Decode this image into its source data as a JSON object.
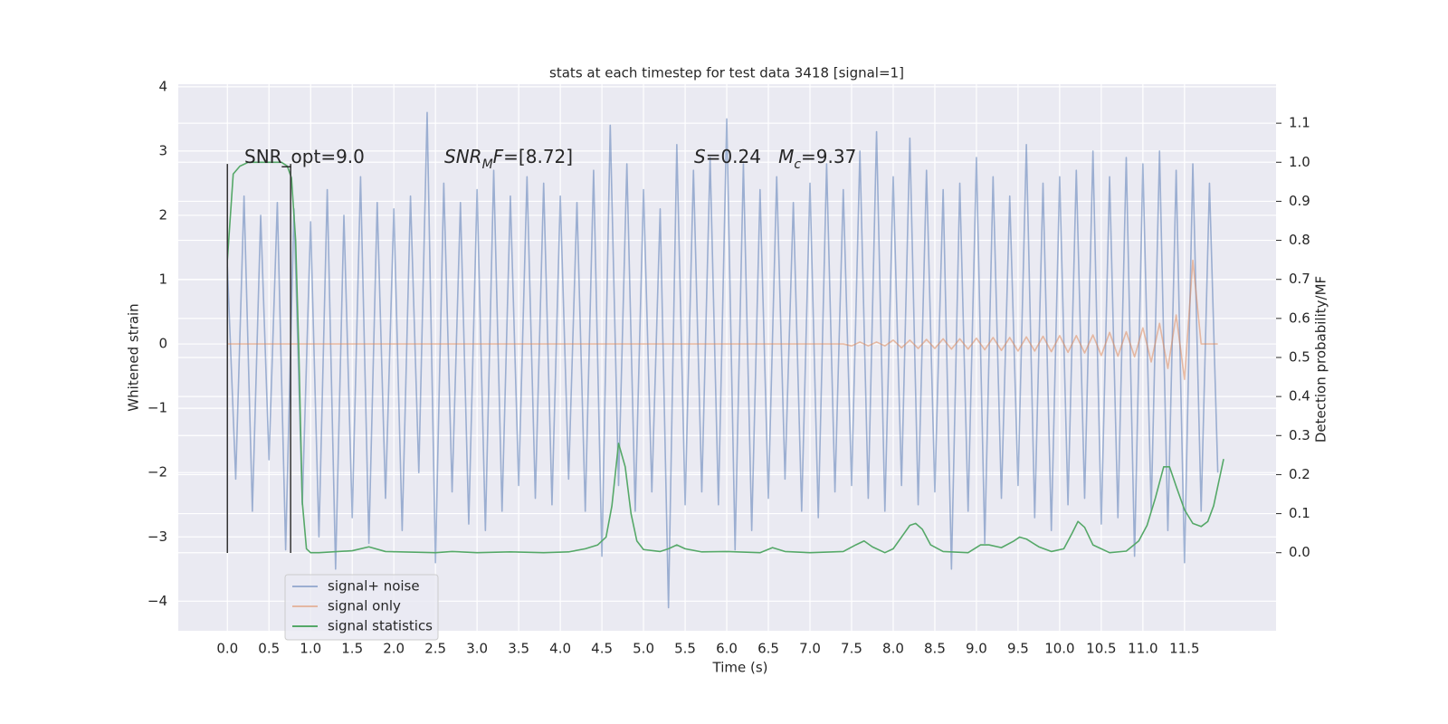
{
  "chart_data": {
    "type": "line",
    "title": "stats at each timestep for test data 3418 [signal=1]",
    "xlabel": "Time (s)",
    "ylabel": "Whitened strain",
    "y2label": "Detection probability/MF",
    "xlim": [
      -0.59,
      12.6
    ],
    "ylim": [
      -4.46,
      4.04
    ],
    "y2lim": [
      -0.2,
      1.2
    ],
    "xticks": [
      {
        "value": 0,
        "label": "0.0"
      },
      0.5,
      {
        "value": 1,
        "label": "1.0"
      },
      1.5,
      {
        "value": 2,
        "label": "2.0"
      },
      2.5,
      {
        "value": 3,
        "label": "3.0"
      },
      3.5,
      {
        "value": 4,
        "label": "4.0"
      },
      4.5,
      {
        "value": 5,
        "label": "5.0"
      },
      5.5,
      {
        "value": 6,
        "label": "6.0"
      },
      6.5,
      {
        "value": 7,
        "label": "7.0"
      },
      7.5,
      {
        "value": 8,
        "label": "8.0"
      },
      8.5,
      {
        "value": 9,
        "label": "9.0"
      },
      9.5,
      {
        "value": 10,
        "label": "10.0"
      },
      10.5,
      {
        "value": 11,
        "label": "11.0"
      },
      11.5
    ],
    "yticks": [
      {
        "value": -4,
        "label": "−4"
      },
      {
        "value": -3,
        "label": "−3"
      },
      {
        "value": -2,
        "label": "−2"
      },
      {
        "value": -1,
        "label": "−1"
      },
      0,
      1,
      2,
      3,
      4
    ],
    "y2ticks": [
      {
        "value": 0,
        "label": "0.0"
      },
      0.1,
      0.2,
      0.3,
      0.4,
      0.5,
      0.6,
      0.7,
      0.8,
      0.9,
      {
        "value": 1,
        "label": "1.0"
      },
      1.1
    ],
    "grid": true,
    "legend": "lower left",
    "x": [
      0,
      0.1,
      0.2,
      0.3,
      0.4,
      0.5,
      0.6,
      0.7,
      0.8,
      0.9,
      1,
      1.1,
      1.2,
      1.3,
      1.4,
      1.5,
      1.6,
      1.7,
      1.8,
      1.9,
      2,
      2.1,
      2.2,
      2.3,
      2.4,
      2.5,
      2.6,
      2.7,
      2.8,
      2.9,
      3,
      3.1,
      3.2,
      3.3,
      3.4,
      3.5,
      3.6,
      3.7,
      3.8,
      3.9,
      4,
      4.1,
      4.2,
      4.3,
      4.4,
      4.5,
      4.6,
      4.7,
      4.8,
      4.9,
      5,
      5.1,
      5.2,
      5.3,
      5.4,
      5.5,
      5.6,
      5.7,
      5.8,
      5.9,
      6,
      6.1,
      6.2,
      6.3,
      6.4,
      6.5,
      6.6,
      6.7,
      6.8,
      6.9,
      7,
      7.1,
      7.2,
      7.3,
      7.4,
      7.5,
      7.6,
      7.7,
      7.8,
      7.9,
      8,
      8.1,
      8.2,
      8.3,
      8.4,
      8.5,
      8.6,
      8.7,
      8.8,
      8.9,
      9,
      9.1,
      9.2,
      9.3,
      9.4,
      9.5,
      9.6,
      9.7,
      9.8,
      9.9,
      10,
      10.1,
      10.2,
      10.3,
      10.4,
      10.5,
      10.6,
      10.7,
      10.8,
      10.9,
      11,
      11.1,
      11.2,
      11.3,
      11.4,
      11.5,
      11.6,
      11.7,
      11.8,
      11.9
    ],
    "series": [
      {
        "name": "signal+ noise",
        "color": "#4c72b0",
        "opacity": 0.5,
        "values": [
          1.2,
          -2.1,
          2.3,
          -2.6,
          2.0,
          -1.8,
          2.2,
          -3.2,
          2.1,
          -2.5,
          1.9,
          -3.0,
          2.4,
          -3.5,
          2.0,
          -2.7,
          2.6,
          -3.1,
          2.2,
          -2.4,
          2.1,
          -2.9,
          2.3,
          -2.0,
          3.6,
          -3.4,
          2.5,
          -2.3,
          2.2,
          -2.8,
          2.4,
          -2.9,
          2.7,
          -2.6,
          2.3,
          -2.2,
          2.6,
          -2.4,
          2.5,
          -2.5,
          2.3,
          -2.1,
          2.2,
          -2.6,
          2.7,
          -3.3,
          3.4,
          -2.2,
          2.8,
          -2.6,
          2.4,
          -2.3,
          2.1,
          -4.1,
          3.1,
          -2.5,
          2.7,
          -2.3,
          2.9,
          -2.5,
          3.5,
          -3.2,
          2.8,
          -2.9,
          2.4,
          -2.4,
          2.6,
          -2.1,
          2.2,
          -2.6,
          2.5,
          -2.7,
          2.8,
          -2.3,
          2.4,
          -2.2,
          3.0,
          -2.4,
          3.3,
          -2.6,
          2.6,
          -2.2,
          3.2,
          -2.5,
          2.7,
          -2.3,
          2.4,
          -3.5,
          2.5,
          -2.6,
          2.9,
          -3.1,
          2.6,
          -2.4,
          2.3,
          -2.2,
          3.1,
          -2.7,
          2.5,
          -2.9,
          2.6,
          -2.5,
          2.7,
          -2.4,
          3.0,
          -2.8,
          2.6,
          -2.7,
          2.9,
          -3.3,
          2.8,
          -2.6,
          3.0,
          -2.9,
          2.7,
          -3.4,
          2.8,
          -2.6,
          2.5,
          -2.0
        ]
      },
      {
        "name": "signal only",
        "color": "#dd8452",
        "opacity": 0.5,
        "values": [
          0,
          0,
          0,
          0,
          0,
          0,
          0,
          0,
          0,
          0,
          0,
          0,
          0,
          0,
          0,
          0,
          0,
          0,
          0,
          0,
          0,
          0,
          0,
          0,
          0,
          0,
          0,
          0,
          0,
          0,
          0,
          0,
          0,
          0,
          0,
          0,
          0,
          0,
          0,
          0,
          0,
          0,
          0,
          0,
          0,
          0,
          0,
          0,
          0,
          0,
          0,
          0,
          0,
          0,
          0,
          0,
          0,
          0,
          0,
          0,
          0,
          0,
          0,
          0,
          0,
          0,
          0,
          0,
          0,
          0,
          0,
          0,
          0,
          0,
          0,
          -0.03,
          0.03,
          -0.03,
          0.03,
          -0.03,
          0.06,
          -0.06,
          0.06,
          -0.07,
          0.07,
          -0.07,
          0.08,
          -0.08,
          0.08,
          -0.08,
          0.09,
          -0.09,
          0.1,
          -0.1,
          0.1,
          -0.11,
          0.11,
          -0.11,
          0.12,
          -0.12,
          0.13,
          -0.13,
          0.13,
          -0.14,
          0.14,
          -0.18,
          0.18,
          -0.19,
          0.19,
          -0.2,
          0.25,
          -0.28,
          0.32,
          -0.38,
          0.45,
          -0.55,
          1.3,
          0,
          0,
          0
        ]
      },
      {
        "name": "signal statistics",
        "color": "#55a868",
        "axis": "y2",
        "x": [
          0,
          0.07,
          0.15,
          0.25,
          0.35,
          0.45,
          0.55,
          0.65,
          0.72,
          0.77,
          0.82,
          0.86,
          0.9,
          0.95,
          1.0,
          1.1,
          1.5,
          1.7,
          1.9,
          2.5,
          2.7,
          3.0,
          3.4,
          3.8,
          4.1,
          4.3,
          4.45,
          4.55,
          4.62,
          4.7,
          4.78,
          4.85,
          4.92,
          5.0,
          5.2,
          5.3,
          5.4,
          5.5,
          5.7,
          6.0,
          6.4,
          6.55,
          6.7,
          7.0,
          7.4,
          7.55,
          7.65,
          7.75,
          7.9,
          8.0,
          8.1,
          8.2,
          8.27,
          8.35,
          8.45,
          8.6,
          8.9,
          9.05,
          9.15,
          9.3,
          9.45,
          9.52,
          9.6,
          9.75,
          9.9,
          10.05,
          10.15,
          10.22,
          10.3,
          10.4,
          10.6,
          10.8,
          10.95,
          11.05,
          11.15,
          11.25,
          11.32,
          11.4,
          11.5,
          11.6,
          11.7,
          11.78,
          11.85,
          11.92,
          11.97
        ],
        "values": [
          0.75,
          0.97,
          0.99,
          1.0,
          1.0,
          1.0,
          1.0,
          1.0,
          0.99,
          0.96,
          0.8,
          0.5,
          0.13,
          0.01,
          0.0,
          0.0,
          0.005,
          0.015,
          0.003,
          0.0,
          0.003,
          0.0,
          0.002,
          0.0,
          0.002,
          0.01,
          0.02,
          0.04,
          0.12,
          0.28,
          0.22,
          0.1,
          0.03,
          0.008,
          0.003,
          0.01,
          0.02,
          0.01,
          0.002,
          0.003,
          0.0,
          0.013,
          0.003,
          0.0,
          0.003,
          0.02,
          0.03,
          0.015,
          0.0,
          0.01,
          0.04,
          0.07,
          0.075,
          0.06,
          0.02,
          0.003,
          0.0,
          0.02,
          0.02,
          0.013,
          0.03,
          0.04,
          0.035,
          0.015,
          0.003,
          0.01,
          0.05,
          0.08,
          0.065,
          0.02,
          0.0,
          0.004,
          0.03,
          0.07,
          0.14,
          0.22,
          0.22,
          0.17,
          0.11,
          0.075,
          0.067,
          0.08,
          0.12,
          0.19,
          0.24
        ]
      }
    ],
    "vlines": {
      "x": [
        0,
        0.76
      ],
      "ymin": -3.25,
      "ymax": 2.8,
      "color": "#333333"
    },
    "annotations": [
      [
        {
          "text": "SNR_opt=9.0"
        }
      ],
      [
        {
          "text": "SNR",
          "italic": true
        },
        {
          "text": "M",
          "italic": true,
          "sub": true
        },
        {
          "text": "F",
          "italic": true
        },
        {
          "text": "=[8.72]"
        }
      ],
      [
        {
          "text": "S",
          "italic": true
        },
        {
          "text": "=0.24   "
        },
        {
          "text": "M",
          "italic": true
        },
        {
          "text": "c",
          "italic": true,
          "sub": true
        },
        {
          "text": "=9.37"
        }
      ]
    ]
  }
}
